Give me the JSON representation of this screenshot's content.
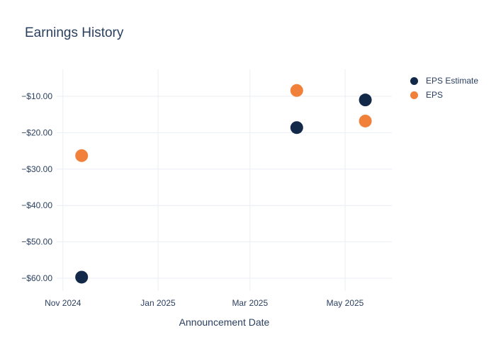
{
  "page": {
    "background": "#ffffff"
  },
  "chart_data": {
    "type": "scatter",
    "title": "Earnings History",
    "xlabel": "Announcement Date",
    "ylabel": "",
    "text_color": "#2a3f5f",
    "grid_color": "#e9eef6",
    "background": "#ffffff",
    "grid": "on",
    "legend_position": "top-right",
    "x_ticks": [
      {
        "label": "Nov 2024",
        "date": "2024-11-01"
      },
      {
        "label": "Jan 2025",
        "date": "2025-01-01"
      },
      {
        "label": "Mar 2025",
        "date": "2025-03-01"
      },
      {
        "label": "May 2025",
        "date": "2025-05-01"
      }
    ],
    "y_ticks": [
      {
        "label": "−$10.00",
        "value": -10
      },
      {
        "label": "−$20.00",
        "value": -20
      },
      {
        "label": "−$30.00",
        "value": -30
      },
      {
        "label": "−$40.00",
        "value": -40
      },
      {
        "label": "−$50.00",
        "value": -50
      },
      {
        "label": "−$60.00",
        "value": -60
      }
    ],
    "x_domain": [
      "2024-10-28",
      "2025-05-31"
    ],
    "y_domain": [
      -63.5,
      -2.6
    ],
    "marker_radius": 9,
    "series": [
      {
        "name": "EPS Estimate",
        "color": "#13294a",
        "points": [
          {
            "date": "2024-11-13",
            "value": -59.7
          },
          {
            "date": "2025-03-31",
            "value": -18.6
          },
          {
            "date": "2025-05-14",
            "value": -11.0
          }
        ]
      },
      {
        "name": "EPS",
        "color": "#f0803a",
        "points": [
          {
            "date": "2024-11-13",
            "value": -26.3
          },
          {
            "date": "2025-03-31",
            "value": -8.4
          },
          {
            "date": "2025-05-14",
            "value": -16.8
          }
        ]
      }
    ]
  }
}
